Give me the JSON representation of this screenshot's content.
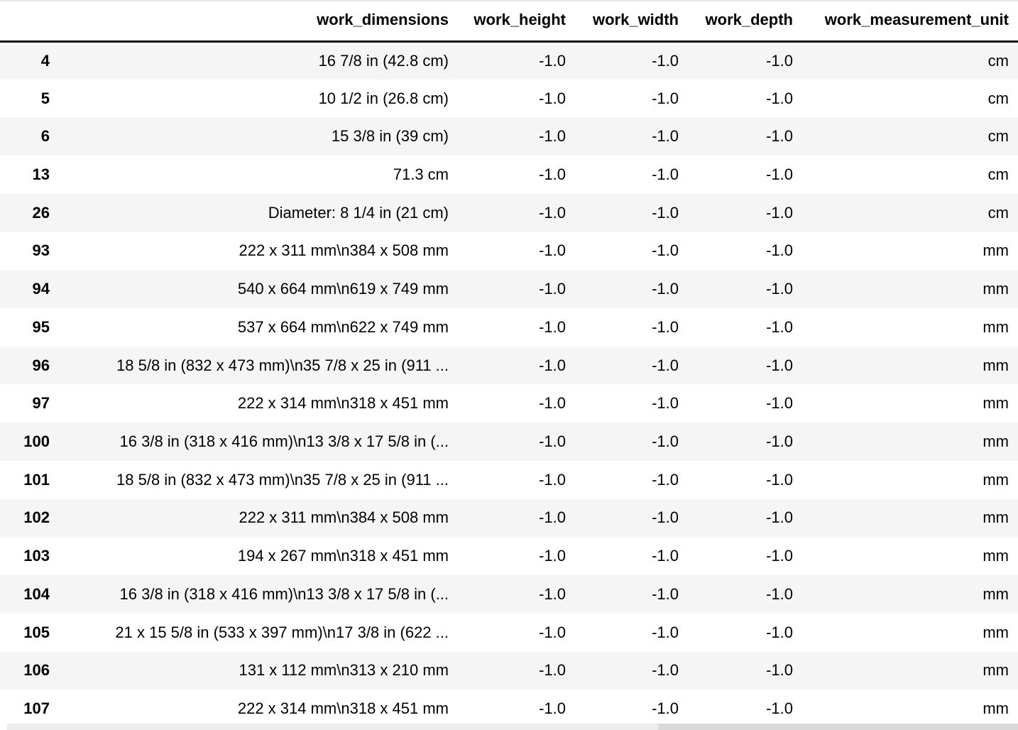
{
  "table": {
    "index_header": "",
    "columns": [
      "work_dimensions",
      "work_height",
      "work_width",
      "work_depth",
      "work_measurement_unit"
    ],
    "rows": [
      {
        "index": "4",
        "cells": [
          "16 7/8 in (42.8 cm)",
          "-1.0",
          "-1.0",
          "-1.0",
          "cm"
        ]
      },
      {
        "index": "5",
        "cells": [
          "10 1/2 in (26.8 cm)",
          "-1.0",
          "-1.0",
          "-1.0",
          "cm"
        ]
      },
      {
        "index": "6",
        "cells": [
          "15 3/8 in (39 cm)",
          "-1.0",
          "-1.0",
          "-1.0",
          "cm"
        ]
      },
      {
        "index": "13",
        "cells": [
          "71.3 cm",
          "-1.0",
          "-1.0",
          "-1.0",
          "cm"
        ]
      },
      {
        "index": "26",
        "cells": [
          "Diameter: 8 1/4 in (21 cm)",
          "-1.0",
          "-1.0",
          "-1.0",
          "cm"
        ]
      },
      {
        "index": "93",
        "cells": [
          "222 x 311 mm\\n384 x 508 mm",
          "-1.0",
          "-1.0",
          "-1.0",
          "mm"
        ]
      },
      {
        "index": "94",
        "cells": [
          "540 x 664 mm\\n619 x 749 mm",
          "-1.0",
          "-1.0",
          "-1.0",
          "mm"
        ]
      },
      {
        "index": "95",
        "cells": [
          "537 x 664 mm\\n622 x 749 mm",
          "-1.0",
          "-1.0",
          "-1.0",
          "mm"
        ]
      },
      {
        "index": "96",
        "cells": [
          "18 5/8 in (832 x 473 mm)\\n35 7/8 x 25 in (911 ...",
          "-1.0",
          "-1.0",
          "-1.0",
          "mm"
        ]
      },
      {
        "index": "97",
        "cells": [
          "222 x 314 mm\\n318 x 451 mm",
          "-1.0",
          "-1.0",
          "-1.0",
          "mm"
        ]
      },
      {
        "index": "100",
        "cells": [
          "16 3/8 in (318 x 416 mm)\\n13 3/8 x 17 5/8 in (...",
          "-1.0",
          "-1.0",
          "-1.0",
          "mm"
        ]
      },
      {
        "index": "101",
        "cells": [
          "18 5/8 in (832 x 473 mm)\\n35 7/8 x 25 in (911 ...",
          "-1.0",
          "-1.0",
          "-1.0",
          "mm"
        ]
      },
      {
        "index": "102",
        "cells": [
          "222 x 311 mm\\n384 x 508 mm",
          "-1.0",
          "-1.0",
          "-1.0",
          "mm"
        ]
      },
      {
        "index": "103",
        "cells": [
          "194 x 267 mm\\n318 x 451 mm",
          "-1.0",
          "-1.0",
          "-1.0",
          "mm"
        ]
      },
      {
        "index": "104",
        "cells": [
          "16 3/8 in (318 x 416 mm)\\n13 3/8 x 17 5/8 in (...",
          "-1.0",
          "-1.0",
          "-1.0",
          "mm"
        ]
      },
      {
        "index": "105",
        "cells": [
          "21 x 15 5/8 in (533 x 397 mm)\\n17 3/8 in (622 ...",
          "-1.0",
          "-1.0",
          "-1.0",
          "mm"
        ]
      },
      {
        "index": "106",
        "cells": [
          "131 x 112 mm\\n313 x 210 mm",
          "-1.0",
          "-1.0",
          "-1.0",
          "mm"
        ]
      },
      {
        "index": "107",
        "cells": [
          "222 x 314 mm\\n318 x 451 mm",
          "-1.0",
          "-1.0",
          "-1.0",
          "mm"
        ]
      }
    ]
  },
  "colors": {
    "row_stripe": "#f5f5f5",
    "row_plain": "#ffffff",
    "text": "#000000",
    "header_rule": "#0f0f0f",
    "scrollbar_track": "#ececec",
    "scrollbar_thumb": "#d9d9d9"
  }
}
